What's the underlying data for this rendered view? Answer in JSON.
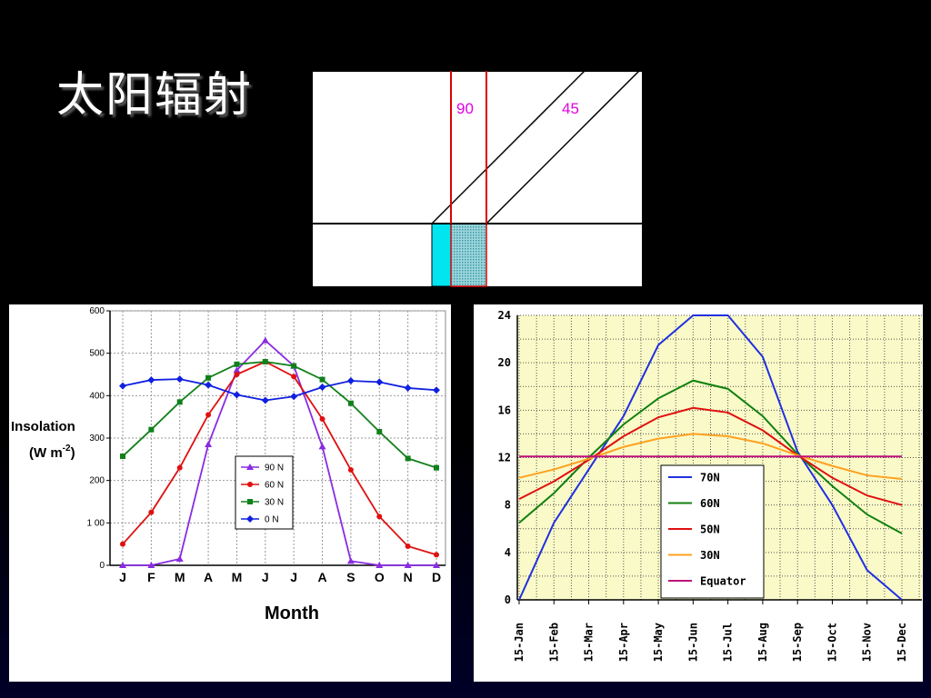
{
  "slide": {
    "title": "太阳辐射"
  },
  "diagram": {
    "label_a": "90",
    "label_b": "45",
    "colors": {
      "angle_label": "#e000e0",
      "beam": "#e00000",
      "cyan_patch": "#00e5f0",
      "dotted_patch": "#4fbcc8"
    }
  },
  "chart_data": [
    {
      "type": "line",
      "xlabel": "Month",
      "ylabel_line1": "Insolation",
      "ylabel_line2_base": "(W m",
      "ylabel_line2_sup": "-2",
      "ylabel_line2_end": ")",
      "categories": [
        "J",
        "F",
        "M",
        "A",
        "M",
        "J",
        "J",
        "A",
        "S",
        "O",
        "N",
        "D"
      ],
      "ylim": [
        0,
        600
      ],
      "yticks": [
        "0",
        "1 00",
        "200",
        "300",
        "400",
        "500",
        "600"
      ],
      "ytick_values": [
        0,
        100,
        200,
        300,
        400,
        500,
        600
      ],
      "grid": true,
      "legend_position": "lower-center",
      "series": [
        {
          "name": "90 N",
          "color": "#8a2be2",
          "marker": "triangle",
          "values": [
            0,
            0,
            15,
            285,
            460,
            530,
            470,
            280,
            10,
            0,
            0,
            0
          ]
        },
        {
          "name": "60 N",
          "color": "#e01010",
          "marker": "circle",
          "values": [
            50,
            125,
            230,
            355,
            450,
            480,
            445,
            345,
            225,
            115,
            45,
            25
          ]
        },
        {
          "name": "30 N",
          "color": "#10801a",
          "marker": "square",
          "values": [
            257,
            320,
            385,
            442,
            474,
            480,
            470,
            438,
            382,
            315,
            252,
            230
          ]
        },
        {
          "name": "0 N",
          "color": "#1020e0",
          "marker": "diamond",
          "values": [
            423,
            437,
            439,
            425,
            402,
            389,
            398,
            420,
            435,
            432,
            418,
            413
          ]
        }
      ]
    },
    {
      "type": "line",
      "categories": [
        "15-Jan",
        "15-Feb",
        "15-Mar",
        "15-Apr",
        "15-May",
        "15-Jun",
        "15-Jul",
        "15-Aug",
        "15-Sep",
        "15-Oct",
        "15-Nov",
        "15-Dec"
      ],
      "ylim": [
        0,
        24
      ],
      "yticks": [
        "0",
        "4",
        "8",
        "12",
        "16",
        "20",
        "24"
      ],
      "ytick_values": [
        0,
        4,
        8,
        12,
        16,
        20,
        24
      ],
      "grid": true,
      "background": "#fafac8",
      "legend_position": "lower-right",
      "series": [
        {
          "name": "70N",
          "color": "#2030e0",
          "values": [
            0,
            6.5,
            11,
            15.5,
            21.5,
            24,
            24,
            20.5,
            12.5,
            8,
            2.5,
            0
          ]
        },
        {
          "name": "60N",
          "color": "#108010",
          "values": [
            6.5,
            9,
            12,
            14.8,
            17,
            18.5,
            17.8,
            15.5,
            12.3,
            9.6,
            7.2,
            5.6
          ]
        },
        {
          "name": "50N",
          "color": "#e01010",
          "values": [
            8.5,
            10,
            11.8,
            13.8,
            15.4,
            16.2,
            15.8,
            14.3,
            12.2,
            10.3,
            8.8,
            8
          ]
        },
        {
          "name": "30N",
          "color": "#ffa020",
          "values": [
            10.3,
            11,
            11.9,
            12.9,
            13.6,
            14,
            13.8,
            13.2,
            12.2,
            11.3,
            10.5,
            10.2
          ]
        },
        {
          "name": "Equator",
          "color": "#c0107a",
          "values": [
            12.1,
            12.1,
            12.1,
            12.1,
            12.1,
            12.1,
            12.1,
            12.1,
            12.1,
            12.1,
            12.1,
            12.1
          ]
        }
      ]
    }
  ]
}
